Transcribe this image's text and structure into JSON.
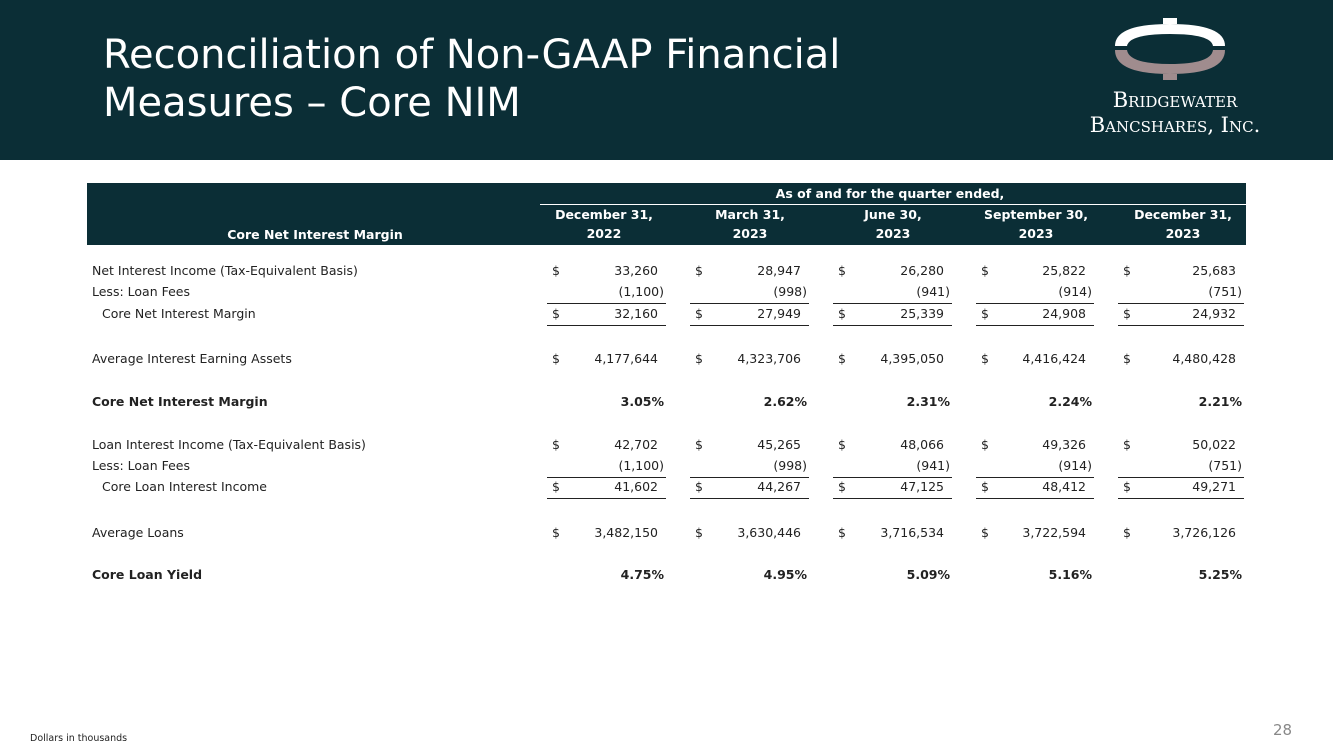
{
  "header": {
    "title_lines": [
      "Reconciliation of Non-GAAP Financial",
      "Measures – Core NIM"
    ],
    "logo_lines": [
      "Bridgewater",
      "Bancshares, Inc."
    ]
  },
  "table": {
    "group_header": "As of and for the quarter ended,",
    "row_header": "Core Net Interest Margin",
    "columns": [
      [
        "December 31,",
        "2022"
      ],
      [
        "March 31,",
        "2023"
      ],
      [
        "June 30,",
        "2023"
      ],
      [
        "September 30,",
        "2023"
      ],
      [
        "December 31,",
        "2023"
      ]
    ],
    "rows": [
      {
        "label": "Net Interest Income (Tax-Equivalent Basis)",
        "currency": "$",
        "cells": [
          "33,260",
          "28,947",
          "26,280",
          "25,822",
          "25,683"
        ]
      },
      {
        "label": "Less: Loan Fees",
        "cells": [
          "(1,100)",
          "(998)",
          "(941)",
          "(914)",
          "(751)"
        ],
        "underline": true
      },
      {
        "label": "Core Net Interest Margin",
        "currency": "$",
        "cells": [
          "32,160",
          "27,949",
          "25,339",
          "24,908",
          "24,932"
        ],
        "indent": true,
        "underline": true
      },
      {
        "label": "Average Interest Earning Assets",
        "currency": "$",
        "cells": [
          "4,177,644",
          "4,323,706",
          "4,395,050",
          "4,416,424",
          "4,480,428"
        ]
      },
      {
        "label": "Core Net Interest Margin",
        "cells": [
          "3.05%",
          "2.62%",
          "2.31%",
          "2.24%",
          "2.21%"
        ],
        "bold": true
      },
      {
        "label": "Loan Interest Income (Tax-Equivalent Basis)",
        "currency": "$",
        "cells": [
          "42,702",
          "45,265",
          "48,066",
          "49,326",
          "50,022"
        ]
      },
      {
        "label": "Less: Loan Fees",
        "cells": [
          "(1,100)",
          "(998)",
          "(941)",
          "(914)",
          "(751)"
        ],
        "underline": true
      },
      {
        "label": "Core Loan Interest Income",
        "currency": "$",
        "cells": [
          "41,602",
          "44,267",
          "47,125",
          "48,412",
          "49,271"
        ],
        "indent": true,
        "underline": true
      },
      {
        "label": "Average Loans",
        "currency": "$",
        "cells": [
          "3,482,150",
          "3,630,446",
          "3,716,534",
          "3,722,594",
          "3,726,126"
        ]
      },
      {
        "label": "Core Loan Yield",
        "cells": [
          "4.75%",
          "4.95%",
          "5.09%",
          "5.16%",
          "5.25%"
        ],
        "bold": true
      }
    ]
  },
  "footer": {
    "note": "Dollars in thousands",
    "page_number": "28"
  }
}
